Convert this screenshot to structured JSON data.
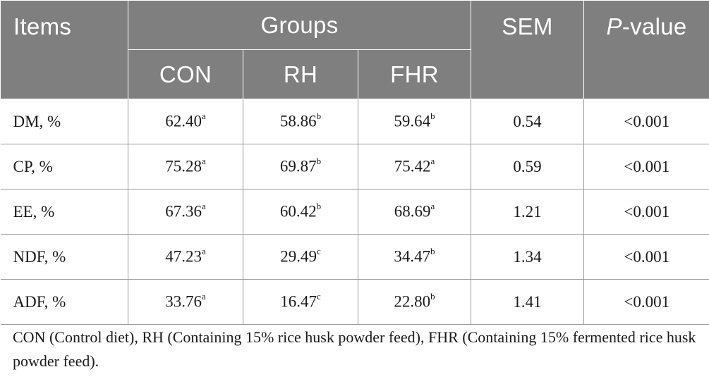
{
  "header": {
    "items": "Items",
    "groups": "Groups",
    "sem": "SEM",
    "pvalue_p": "P",
    "pvalue_rest": "-value",
    "group_names": [
      "CON",
      "RH",
      "FHR"
    ]
  },
  "rows": [
    {
      "item": "DM, %",
      "con": "62.40",
      "con_sup": "a",
      "rh": "58.86",
      "rh_sup": "b",
      "fhr": "59.64",
      "fhr_sup": "b",
      "sem": "0.54",
      "p": "<0.001"
    },
    {
      "item": "CP, %",
      "con": "75.28",
      "con_sup": "a",
      "rh": "69.87",
      "rh_sup": "b",
      "fhr": "75.42",
      "fhr_sup": "a",
      "sem": "0.59",
      "p": "<0.001"
    },
    {
      "item": "EE, %",
      "con": "67.36",
      "con_sup": "a",
      "rh": "60.42",
      "rh_sup": "b",
      "fhr": "68.69",
      "fhr_sup": "a",
      "sem": "1.21",
      "p": "<0.001"
    },
    {
      "item": "NDF, %",
      "con": "47.23",
      "con_sup": "a",
      "rh": "29.49",
      "rh_sup": "c",
      "fhr": "34.47",
      "fhr_sup": "b",
      "sem": "1.34",
      "p": "<0.001"
    },
    {
      "item": "ADF, %",
      "con": "33.76",
      "con_sup": "a",
      "rh": "16.47",
      "rh_sup": "c",
      "fhr": "22.80",
      "fhr_sup": "b",
      "sem": "1.41",
      "p": "<0.001"
    }
  ],
  "footnote": "CON (Control diet), RH (Containing 15% rice husk powder feed), FHR (Containing 15% fermented rice husk powder feed)."
}
